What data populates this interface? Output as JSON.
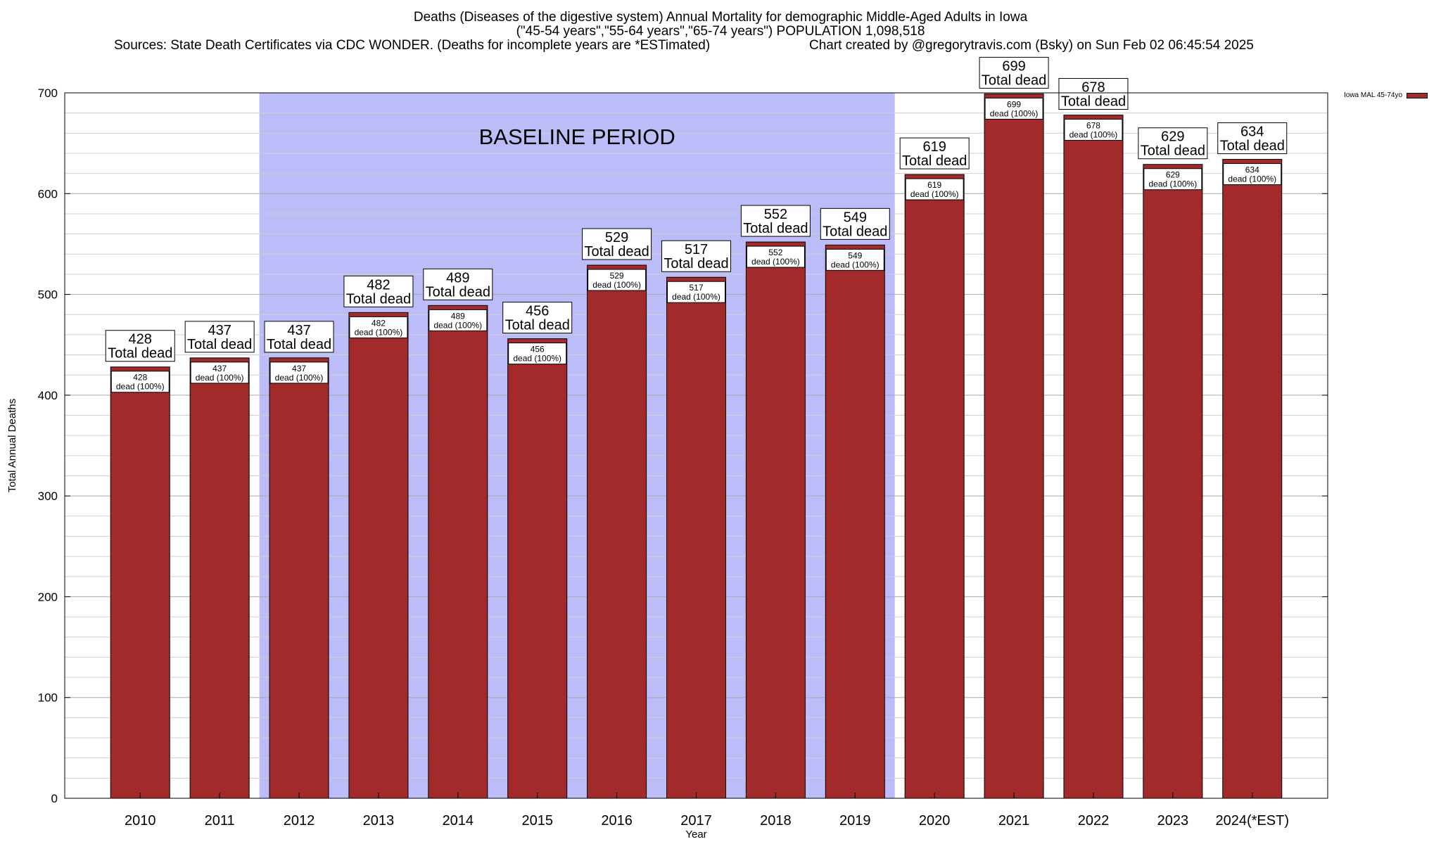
{
  "title": {
    "line1": "Deaths (Diseases of the digestive system) Annual Mortality for demographic Middle-Aged Adults in Iowa",
    "line2": "(\"45-54 years\",\"55-64 years\",\"65-74 years\") POPULATION 1,098,518",
    "line3_left": "Sources: State Death Certificates via CDC WONDER. (Deaths for incomplete years are *ESTimated)",
    "line3_right": "Chart created by @gregorytravis.com (Bsky) on Sun Feb 02 06:45:54 2025"
  },
  "chart_data": {
    "type": "bar",
    "title": "Deaths (Diseases of the digestive system) Annual Mortality for demographic Middle-Aged Adults in Iowa",
    "xlabel": "Year",
    "ylabel": "Total Annual Deaths",
    "ylim": [
      0,
      700
    ],
    "yticks": [
      0,
      100,
      200,
      300,
      400,
      500,
      600,
      700
    ],
    "grid": true,
    "legend_position": "top-right",
    "categories": [
      "2010",
      "2011",
      "2012",
      "2013",
      "2014",
      "2015",
      "2016",
      "2017",
      "2018",
      "2019",
      "2020",
      "2021",
      "2022",
      "2023",
      "2024(*EST)"
    ],
    "series": [
      {
        "name": "Iowa MAL 45-74yo",
        "values": [
          428,
          437,
          437,
          482,
          489,
          456,
          529,
          517,
          552,
          549,
          619,
          699,
          678,
          629,
          634
        ]
      }
    ],
    "top_label_suffix": "Total dead",
    "inner_label_suffix": "dead (100%)",
    "baseline_period": {
      "label": "BASELINE PERIOD",
      "start": "2012",
      "end": "2019"
    },
    "colors": {
      "bar": "#a22a2a",
      "baseline_shade": "#bcbcf9"
    }
  }
}
